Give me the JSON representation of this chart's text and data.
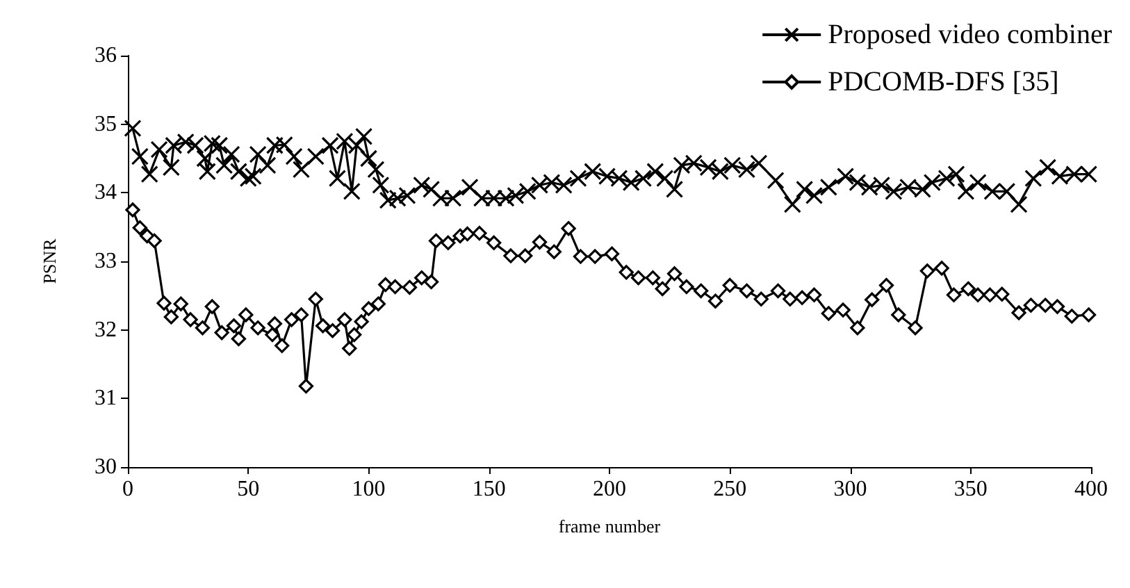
{
  "chart_data": {
    "type": "line",
    "xlabel": "frame number",
    "ylabel": "PSNR",
    "xlim": [
      0,
      400
    ],
    "xticks": [
      0,
      50,
      100,
      150,
      200,
      250,
      300,
      350,
      400
    ],
    "ylim": [
      30,
      36
    ],
    "yticks": [
      30,
      31,
      32,
      33,
      34,
      35,
      36
    ],
    "grid": false,
    "legend": "top right",
    "line_style": "solid",
    "series": [
      {
        "name": "Proposed video combiner",
        "color": "#000000",
        "marker": "cross",
        "x": [
          2,
          5,
          9,
          13,
          18,
          19,
          24,
          28,
          32,
          33,
          35,
          38,
          40,
          43,
          46,
          50,
          52,
          54,
          58,
          61,
          65,
          69,
          72,
          78,
          84,
          87,
          90,
          93,
          95,
          98,
          100,
          103,
          105,
          108,
          112,
          116,
          122,
          126,
          130,
          135,
          142,
          147,
          152,
          157,
          161,
          166,
          171,
          176,
          181,
          187,
          193,
          199,
          204,
          209,
          214,
          219,
          223,
          227,
          230,
          235,
          241,
          246,
          251,
          257,
          262,
          269,
          276,
          281,
          285,
          291,
          298,
          303,
          308,
          313,
          318,
          324,
          330,
          334,
          340,
          344,
          348,
          353,
          359,
          365,
          370,
          376,
          382,
          387,
          393,
          399
        ],
        "values": [
          34.94,
          34.53,
          34.27,
          34.63,
          34.37,
          34.69,
          34.74,
          34.69,
          34.5,
          34.31,
          34.72,
          34.69,
          34.4,
          34.56,
          34.31,
          34.21,
          34.24,
          34.56,
          34.4,
          34.69,
          34.7,
          34.53,
          34.34,
          34.53,
          34.69,
          34.21,
          34.75,
          34.02,
          34.69,
          34.82,
          34.5,
          34.34,
          34.11,
          33.89,
          33.92,
          33.96,
          34.11,
          34.05,
          33.92,
          33.92,
          34.08,
          33.92,
          33.92,
          33.92,
          33.96,
          34.02,
          34.11,
          34.15,
          34.11,
          34.21,
          34.31,
          34.24,
          34.21,
          34.15,
          34.21,
          34.31,
          34.21,
          34.05,
          34.4,
          34.43,
          34.37,
          34.31,
          34.4,
          34.34,
          34.43,
          34.18,
          33.83,
          34.05,
          33.96,
          34.08,
          34.24,
          34.15,
          34.08,
          34.11,
          34.02,
          34.08,
          34.05,
          34.15,
          34.21,
          34.27,
          34.02,
          34.15,
          34.02,
          34.02,
          33.83,
          34.21,
          34.37,
          34.24,
          34.27,
          34.27
        ]
      },
      {
        "name": "PDCOMB-DFS [35]",
        "color": "#000000",
        "marker": "diamond",
        "x": [
          2,
          5,
          8,
          11,
          15,
          18,
          22,
          26,
          31,
          35,
          39,
          44,
          46,
          49,
          54,
          60,
          61,
          64,
          68,
          72,
          74,
          78,
          81,
          85,
          90,
          92,
          94,
          97,
          100,
          104,
          107,
          111,
          117,
          122,
          126,
          128,
          133,
          138,
          141,
          146,
          152,
          159,
          165,
          171,
          177,
          183,
          188,
          194,
          201,
          207,
          212,
          218,
          222,
          227,
          232,
          238,
          244,
          250,
          257,
          263,
          270,
          275,
          280,
          285,
          291,
          297,
          303,
          309,
          315,
          320,
          327,
          332,
          338,
          343,
          349,
          353,
          358,
          363,
          370,
          375,
          381,
          386,
          392,
          399
        ],
        "values": [
          33.75,
          33.49,
          33.37,
          33.3,
          32.39,
          32.19,
          32.38,
          32.15,
          32.03,
          32.34,
          31.96,
          32.06,
          31.87,
          32.22,
          32.03,
          31.93,
          32.09,
          31.77,
          32.15,
          32.22,
          31.18,
          32.45,
          32.06,
          31.99,
          32.15,
          31.73,
          31.93,
          32.12,
          32.31,
          32.38,
          32.66,
          32.63,
          32.62,
          32.76,
          32.7,
          33.3,
          33.27,
          33.37,
          33.4,
          33.41,
          33.27,
          33.08,
          33.08,
          33.28,
          33.14,
          33.48,
          33.07,
          33.07,
          33.11,
          32.84,
          32.76,
          32.76,
          32.6,
          32.82,
          32.63,
          32.57,
          32.42,
          32.65,
          32.57,
          32.45,
          32.57,
          32.45,
          32.47,
          32.51,
          32.24,
          32.29,
          32.03,
          32.44,
          32.65,
          32.22,
          32.03,
          32.86,
          32.9,
          32.51,
          32.6,
          32.51,
          32.51,
          32.52,
          32.25,
          32.36,
          32.36,
          32.34,
          32.2,
          32.22
        ]
      }
    ]
  }
}
